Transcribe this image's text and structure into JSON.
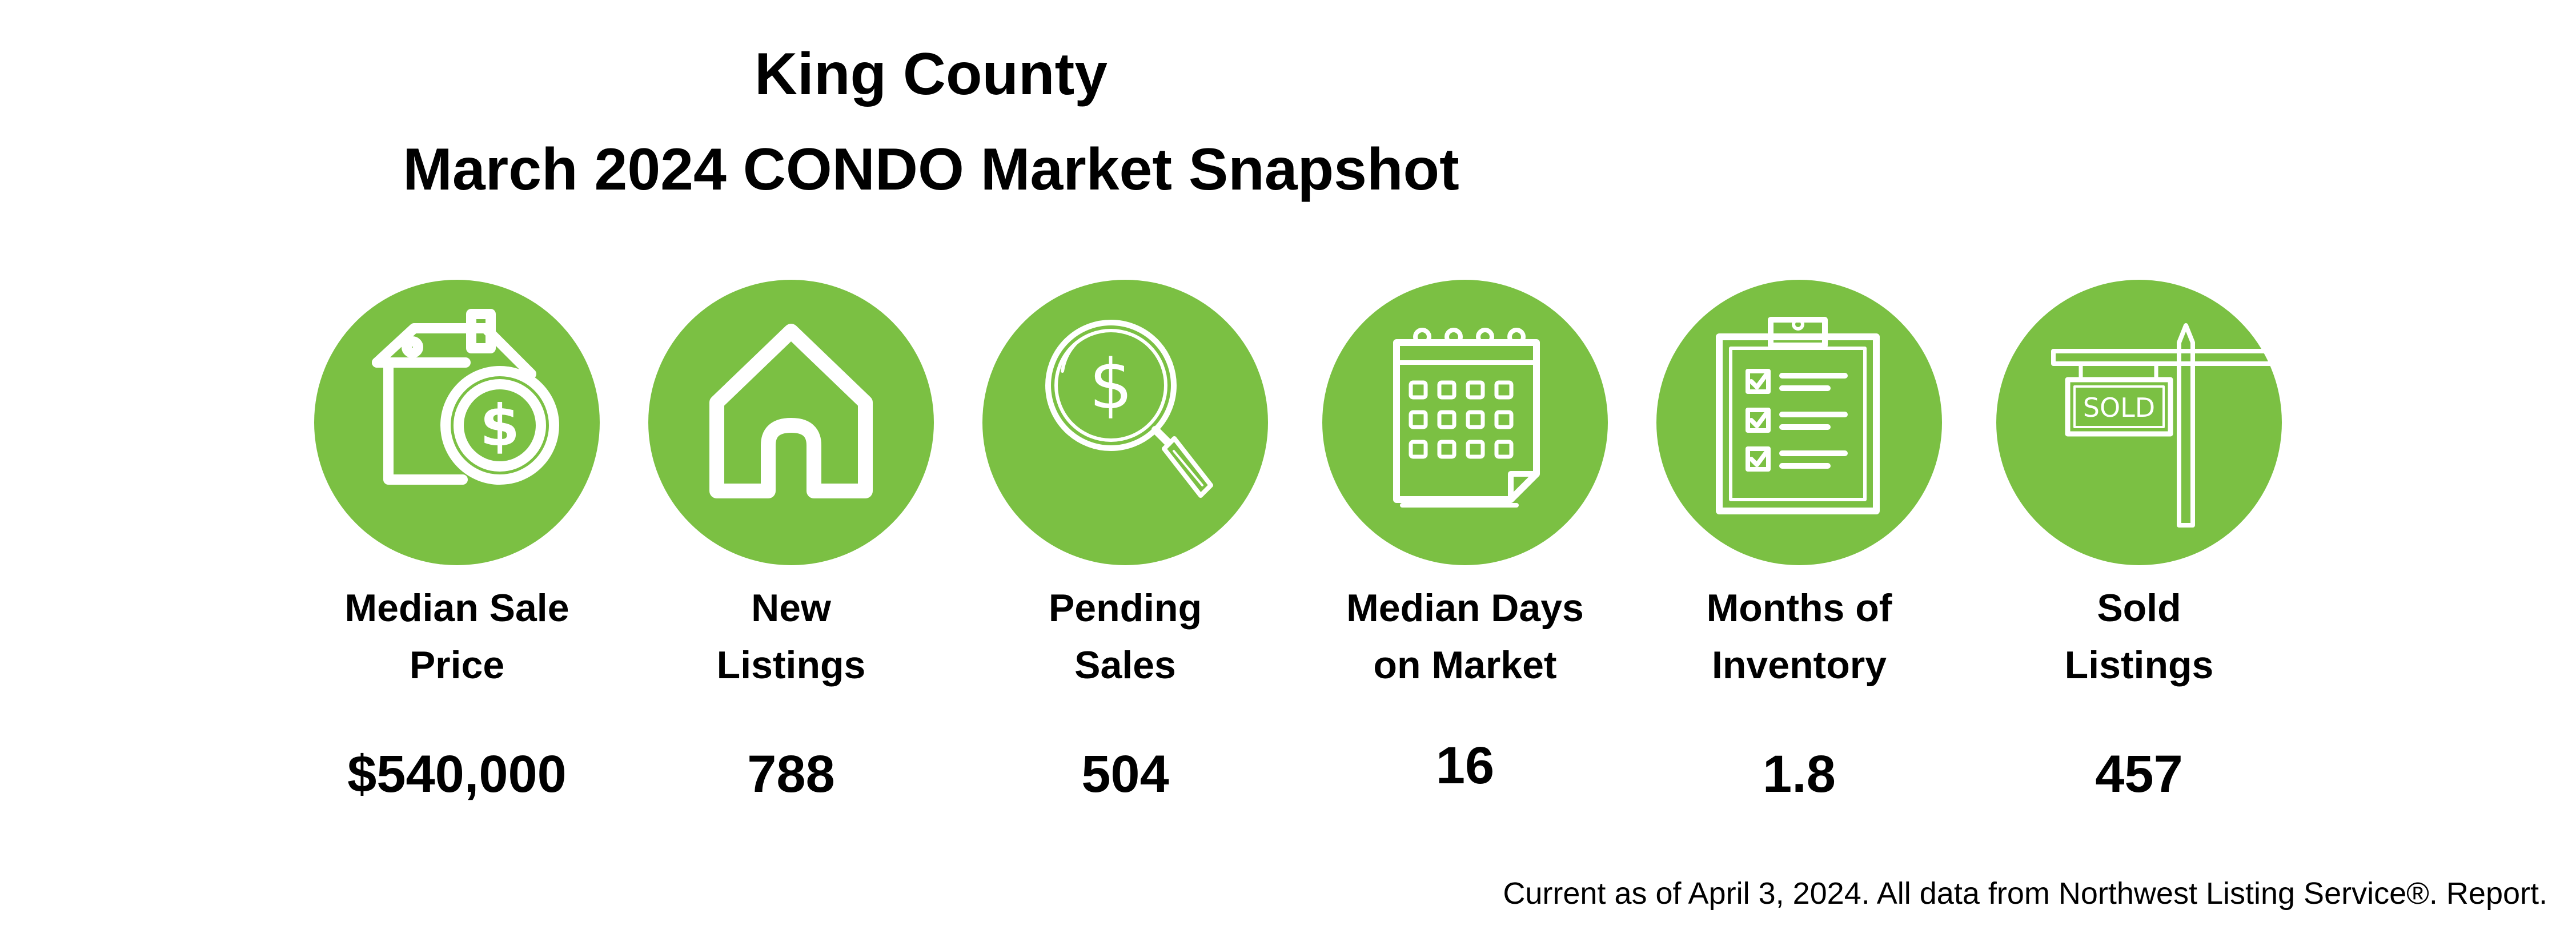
{
  "header": {
    "title_line1": "King County",
    "title_line2": "March 2024 CONDO Market Snapshot"
  },
  "stats": [
    {
      "label_line1": "Median Sale",
      "label_line2": "Price",
      "value": "$540,000",
      "icon": "house-dollar-icon"
    },
    {
      "label_line1": "New",
      "label_line2": "Listings",
      "value": "788",
      "icon": "house-icon"
    },
    {
      "label_line1": "Pending",
      "label_line2": "Sales",
      "value": "504",
      "icon": "magnifier-dollar-icon"
    },
    {
      "label_line1": "Median Days",
      "label_line2": "on Market",
      "value": "16",
      "icon": "calendar-icon"
    },
    {
      "label_line1": "Months of",
      "label_line2": "Inventory",
      "value": "1.8",
      "icon": "clipboard-checklist-icon"
    },
    {
      "label_line1": "Sold",
      "label_line2": "Listings",
      "value": "457",
      "icon": "sold-sign-icon",
      "sign_text": "SOLD"
    }
  ],
  "footer": {
    "note": "Current as of April 3, 2024. All data from Northwest Listing Service®. Report."
  },
  "colors": {
    "accent": "#7bc043",
    "text": "#000000",
    "icon_stroke": "#ffffff"
  }
}
